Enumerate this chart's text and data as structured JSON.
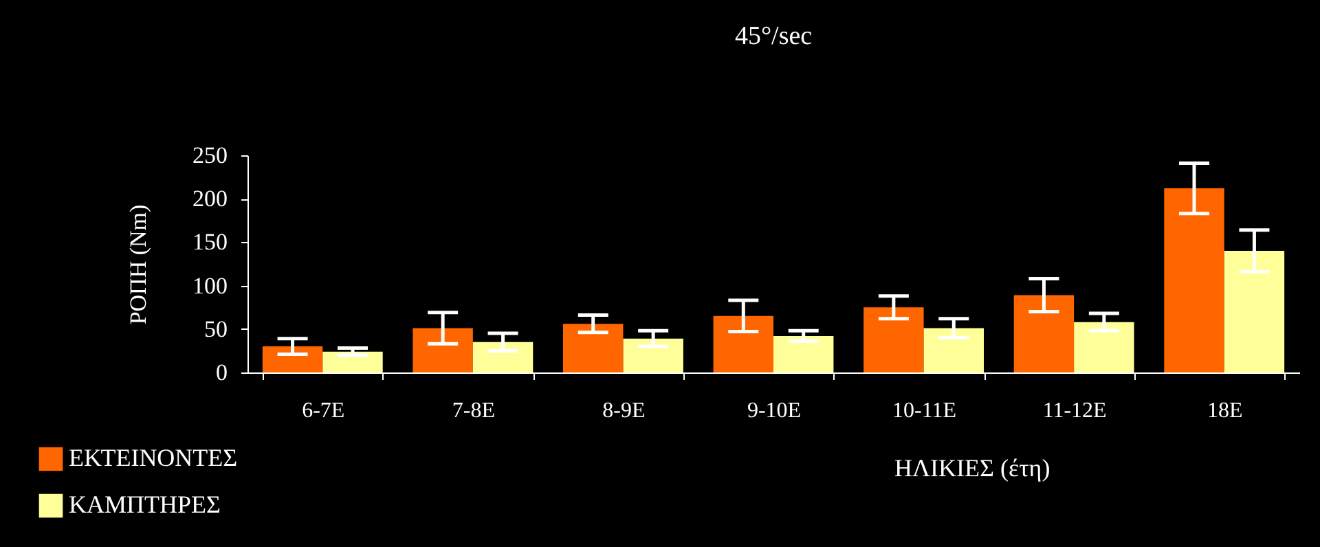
{
  "chart_data": {
    "type": "bar",
    "title": "45°/sec",
    "xlabel": "ΗΛΙΚΙΕΣ (έτη)",
    "ylabel": "ΡΟΠΗ (Nm)",
    "categories": [
      "6-7E",
      "7-8E",
      "8-9E",
      "9-10E",
      "10-11E",
      "11-12E",
      "18E"
    ],
    "series": [
      {
        "name": "ΕΚΤΕΙΝΟΝΤΕΣ",
        "color": "#ff6600",
        "values": [
          30,
          51,
          56,
          65,
          75,
          89,
          212
        ],
        "errors": [
          9,
          18,
          10,
          18,
          13,
          19,
          29
        ]
      },
      {
        "name": "ΚΑΜΠΤΗΡΕΣ",
        "color": "#ffff99",
        "values": [
          24,
          35,
          39,
          42,
          51,
          58,
          140
        ],
        "errors": [
          4,
          10,
          9,
          6,
          11,
          10,
          24
        ]
      }
    ],
    "ylim": [
      0,
      250
    ],
    "yticks": [
      0,
      50,
      100,
      150,
      200,
      250
    ],
    "grid": false,
    "legend": "bottom left"
  }
}
